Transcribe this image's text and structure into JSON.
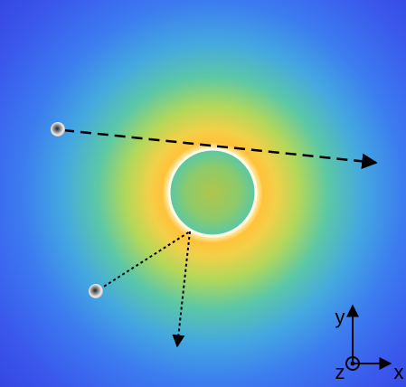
{
  "axes": {
    "y": "y",
    "z": "z",
    "x": "x"
  }
}
